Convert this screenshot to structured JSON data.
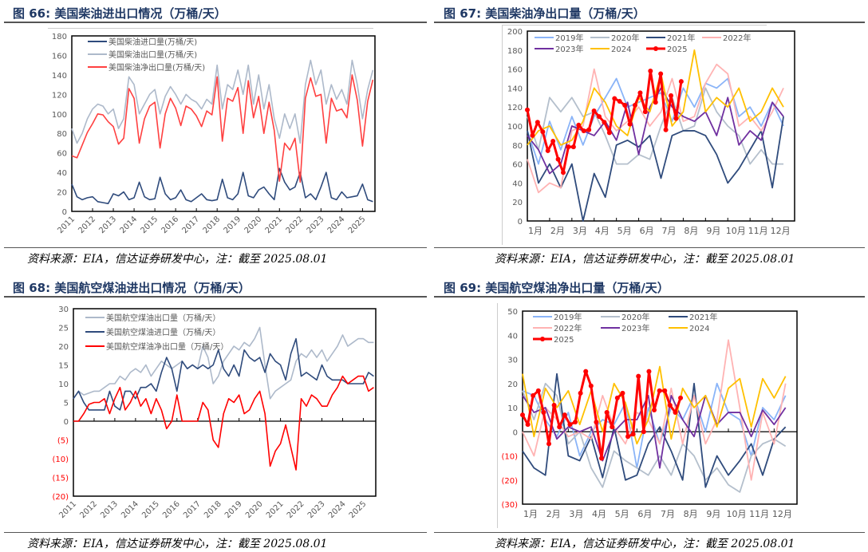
{
  "panels": [
    {
      "title": "图 66:  美国柴油进出口情况（万桶/天）",
      "source": "资料来源：EIA，信达证券研发中心，注：截至 2025.08.01"
    },
    {
      "title": "图 67:  美国柴油净出口量（万桶/天）",
      "source": "资料来源：EIA，信达证券研发中心，注：截至 2025.08.01"
    },
    {
      "title": "图 68:  美国航空煤油进出口情况（万桶/天）",
      "source": "资料来源：EIA，信达证券研发中心，注：截至 2025.08.01"
    },
    {
      "title": "图 69:  美国航空煤油净出口量（万桶/天）",
      "source": "资料来源：EIA，信达证券研发中心，注：截至 2025.08.01"
    }
  ],
  "chart_data": [
    {
      "type": "line",
      "title": "美国柴油进出口情况（万桶/天）",
      "xlabel": "",
      "ylabel": "",
      "xlim": [
        2011,
        2025.6
      ],
      "ylim": [
        0,
        180
      ],
      "yticks": [
        0,
        20,
        40,
        60,
        80,
        100,
        120,
        140,
        160,
        180
      ],
      "ytick_labels": [
        "0",
        "20",
        "40",
        "60",
        "80",
        "100",
        "120",
        "140",
        "160",
        "180"
      ],
      "xtick_labels": [
        "2011",
        "2012",
        "2013",
        "2014",
        "2015",
        "2016",
        "2017",
        "2018",
        "2019",
        "2020",
        "2021",
        "2022",
        "2023",
        "2024",
        "2025"
      ],
      "legend_position": "top-left",
      "x_start": 2011,
      "x_step": 0.25,
      "series": [
        {
          "name": "美国柴油进口量(万桶/天)",
          "color": "#2F4B7C",
          "values": [
            28,
            15,
            12,
            14,
            15,
            10,
            9,
            8,
            18,
            16,
            20,
            12,
            14,
            30,
            15,
            12,
            13,
            35,
            18,
            12,
            14,
            22,
            12,
            10,
            14,
            18,
            12,
            11,
            12,
            33,
            14,
            12,
            18,
            40,
            16,
            14,
            22,
            25,
            18,
            12,
            44,
            30,
            22,
            25,
            40,
            14,
            18,
            12,
            25,
            40,
            14,
            12,
            20,
            14,
            15,
            16,
            28,
            12,
            10
          ]
        },
        {
          "name": "美国柴油出口量(万桶/天)",
          "color": "#ADB9CA",
          "values": [
            85,
            70,
            80,
            95,
            105,
            110,
            108,
            100,
            105,
            85,
            95,
            138,
            130,
            100,
            110,
            120,
            125,
            100,
            118,
            128,
            120,
            110,
            120,
            115,
            112,
            105,
            115,
            110,
            150,
            105,
            130,
            125,
            145,
            120,
            150,
            110,
            140,
            105,
            130,
            95,
            75,
            100,
            85,
            100,
            70,
            130,
            155,
            130,
            145,
            110,
            130,
            115,
            125,
            110,
            155,
            130,
            95,
            125,
            145
          ]
        },
        {
          "name": "美国柴油净出口量(万桶/天)",
          "color": "#FF4040",
          "values": [
            57,
            55,
            68,
            81,
            90,
            100,
            99,
            92,
            87,
            69,
            75,
            126,
            116,
            70,
            95,
            108,
            112,
            65,
            100,
            116,
            106,
            88,
            108,
            105,
            98,
            87,
            103,
            99,
            138,
            72,
            116,
            113,
            127,
            80,
            134,
            96,
            118,
            80,
            112,
            83,
            31,
            70,
            63,
            75,
            30,
            116,
            137,
            118,
            120,
            70,
            116,
            103,
            105,
            96,
            140,
            114,
            67,
            113,
            135
          ]
        }
      ]
    },
    {
      "type": "line",
      "title": "美国柴油净出口量（万桶/天）",
      "xlabel": "",
      "ylabel": "",
      "xlim": [
        1,
        13
      ],
      "ylim": [
        0,
        200
      ],
      "yticks": [
        0,
        20,
        40,
        60,
        80,
        100,
        120,
        140,
        160,
        180,
        200
      ],
      "ytick_labels": [
        "0",
        "20",
        "40",
        "60",
        "80",
        "100",
        "120",
        "140",
        "160",
        "180",
        "200"
      ],
      "xtick_labels": [
        "1月",
        "2月",
        "3月",
        "4月",
        "5月",
        "6月",
        "7月",
        "8月",
        "9月",
        "10月",
        "11月",
        "12月"
      ],
      "legend_position": "top",
      "series": [
        {
          "name": "2019年",
          "color": "#8AB4F8",
          "x_start": 1,
          "x_step": 0.5,
          "values": [
            95,
            60,
            105,
            75,
            110,
            80,
            110,
            130,
            150,
            120,
            125,
            130,
            135,
            105,
            140,
            120,
            145,
            140,
            150,
            110,
            120,
            100,
            125,
            100
          ]
        },
        {
          "name": "2020年",
          "color": "#B4BFCC",
          "x_start": 1,
          "x_step": 0.5,
          "values": [
            110,
            75,
            130,
            115,
            130,
            110,
            115,
            90,
            60,
            60,
            70,
            65,
            100,
            130,
            95,
            100,
            140,
            115,
            100,
            90,
            60,
            75,
            60,
            60
          ]
        },
        {
          "name": "2021年",
          "color": "#2F4B7C",
          "x_start": 1,
          "x_step": 0.5,
          "values": [
            95,
            40,
            60,
            35,
            60,
            0,
            50,
            25,
            80,
            85,
            78,
            90,
            45,
            90,
            95,
            95,
            90,
            70,
            40,
            55,
            75,
            95,
            35,
            110
          ]
        },
        {
          "name": "2022年",
          "color": "#FFB3B3",
          "x_start": 1,
          "x_step": 0.5,
          "values": [
            65,
            30,
            40,
            35,
            95,
            100,
            160,
            110,
            95,
            105,
            120,
            100,
            115,
            150,
            105,
            110,
            145,
            165,
            155,
            100,
            110,
            95,
            115,
            140
          ]
        },
        {
          "name": "2023年",
          "color": "#7030A0",
          "x_start": 1,
          "x_step": 0.5,
          "values": [
            90,
            75,
            50,
            60,
            100,
            95,
            90,
            105,
            85,
            125,
            70,
            120,
            140,
            120,
            110,
            105,
            115,
            90,
            130,
            80,
            95,
            85,
            125,
            110
          ]
        },
        {
          "name": "2024",
          "color": "#FFC000",
          "x_start": 1,
          "x_step": 0.5,
          "values": [
            80,
            95,
            100,
            80,
            85,
            105,
            140,
            125,
            100,
            90,
            130,
            115,
            155,
            100,
            115,
            180,
            115,
            130,
            120,
            140,
            105,
            115,
            140,
            120
          ]
        },
        {
          "name": "2025",
          "color": "#FF0000",
          "markers": true,
          "x_start": 1,
          "x_step": 0.2303,
          "values": [
            117,
            90,
            104,
            94,
            74,
            84,
            65,
            51,
            78,
            78,
            101,
            95,
            96,
            116,
            110,
            104,
            93,
            129,
            126,
            122,
            102,
            122,
            135,
            115,
            158,
            125,
            155,
            96,
            132,
            108,
            147
          ]
        }
      ]
    },
    {
      "type": "line",
      "title": "美国航空煤油进出口情况（万桶/天）",
      "xlabel": "",
      "ylabel": "",
      "xlim": [
        2011,
        2025.6
      ],
      "ylim": [
        -20,
        30
      ],
      "yticks": [
        -20,
        -15,
        -10,
        -5,
        0,
        5,
        10,
        15,
        20,
        25,
        30
      ],
      "ytick_labels": [
        "(20)",
        "(15)",
        "(10)",
        "(5)",
        "0",
        "5",
        "10",
        "15",
        "20",
        "25",
        "30"
      ],
      "xtick_labels": [
        "2011",
        "2012",
        "2013",
        "2014",
        "2015",
        "2016",
        "2017",
        "2018",
        "2019",
        "2020",
        "2021",
        "2022",
        "2023",
        "2024",
        "2025"
      ],
      "legend_position": "top-left",
      "x_start": 2011,
      "x_step": 0.25,
      "series": [
        {
          "name": "美国航空煤油出口量（万桶/天）",
          "color": "#ADB9CA",
          "values": [
            6,
            8,
            7,
            7.5,
            8,
            8,
            9,
            10,
            10,
            12,
            11,
            13,
            14,
            13,
            15,
            12,
            14,
            16,
            15,
            14,
            15,
            16,
            14,
            15,
            14,
            20,
            17,
            10,
            12,
            16,
            18,
            20,
            19,
            21,
            20,
            22,
            25,
            15,
            6,
            8,
            9,
            10,
            11,
            16,
            18,
            17,
            19,
            17,
            19,
            16,
            18,
            20,
            23,
            20,
            21,
            22,
            22,
            21,
            21
          ]
        },
        {
          "name": "美国航空煤油进口量（万桶/天）",
          "color": "#2F4B7C",
          "values": [
            6,
            8,
            5,
            3,
            3,
            3,
            3,
            8,
            4,
            3,
            8,
            8,
            6,
            9,
            9,
            10,
            8,
            13,
            17,
            14,
            8,
            16,
            14,
            15,
            14,
            15,
            14,
            15,
            19,
            14,
            12,
            15,
            12,
            19,
            17,
            16,
            17,
            13,
            18,
            16,
            15,
            11,
            18,
            22,
            12,
            13,
            12,
            11,
            15,
            12,
            11,
            11,
            11,
            10,
            10,
            10,
            10,
            13,
            12
          ]
        },
        {
          "name": "美国航空煤油净出口量（万桶/天）",
          "color": "#FF0000",
          "values": [
            0,
            0,
            2,
            4.5,
            5,
            5,
            6,
            2,
            6,
            9,
            3,
            5,
            8,
            4,
            6,
            2,
            6,
            3,
            -2,
            0,
            7,
            0,
            0,
            0,
            0,
            5,
            3,
            -5,
            -7,
            2,
            6,
            5,
            7,
            2,
            3,
            6,
            8,
            2,
            -12,
            -8,
            -6,
            -1,
            -7,
            -13,
            6,
            4,
            7,
            6,
            4,
            4,
            7,
            9,
            12,
            10,
            11,
            12,
            12,
            8,
            9
          ]
        }
      ]
    },
    {
      "type": "line",
      "title": "美国航空煤油净出口量（万桶/天）",
      "xlabel": "",
      "ylabel": "",
      "xlim": [
        1,
        13
      ],
      "ylim": [
        -30,
        50
      ],
      "yticks": [
        -30,
        -20,
        -10,
        0,
        10,
        20,
        30,
        40,
        50
      ],
      "ytick_labels": [
        "(30)",
        "(20)",
        "(10)",
        "0",
        "10",
        "20",
        "30",
        "40",
        "50"
      ],
      "xtick_labels": [
        "1月",
        "2月",
        "3月",
        "4月",
        "5月",
        "6月",
        "7月",
        "8月",
        "9月",
        "10月",
        "11月",
        "12月"
      ],
      "legend_position": "top",
      "series": [
        {
          "name": "2019年",
          "color": "#8AB4F8",
          "x_start": 1,
          "x_step": 0.5,
          "values": [
            17,
            15,
            5,
            -2,
            8,
            -10,
            0,
            5,
            3,
            12,
            -15,
            10,
            -5,
            10,
            5,
            15,
            0,
            20,
            8,
            5,
            -10,
            10,
            5,
            15
          ]
        },
        {
          "name": "2020年",
          "color": "#B4BFCC",
          "x_start": 1,
          "x_step": 0.5,
          "values": [
            17,
            5,
            20,
            15,
            -5,
            0,
            -15,
            -23,
            -8,
            -12,
            -15,
            -18,
            -10,
            -18,
            -5,
            -10,
            -20,
            -15,
            -22,
            -25,
            -10,
            -5,
            -3,
            -6
          ]
        },
        {
          "name": "2021年",
          "color": "#2F4B7C",
          "x_start": 1,
          "x_step": 0.5,
          "values": [
            -8,
            -15,
            -18,
            24,
            -10,
            -12,
            -2,
            -19,
            2,
            -20,
            -18,
            -5,
            2,
            -8,
            -20,
            20,
            -23,
            -10,
            -18,
            -12,
            -5,
            -18,
            -3,
            2
          ]
        },
        {
          "name": "2022年",
          "color": "#FFB3B3",
          "x_start": 1,
          "x_step": 0.5,
          "values": [
            0,
            -10,
            10,
            5,
            -2,
            0,
            -3,
            15,
            2,
            -5,
            8,
            5,
            -5,
            18,
            -5,
            15,
            -5,
            5,
            38,
            10,
            -20,
            8,
            -5,
            20
          ]
        },
        {
          "name": "2023年",
          "color": "#7030A0",
          "x_start": 1,
          "x_step": 0.5,
          "values": [
            15,
            8,
            10,
            -3,
            2,
            0,
            2,
            -12,
            0,
            5,
            5,
            15,
            -15,
            15,
            5,
            -2,
            15,
            3,
            8,
            8,
            -2,
            9,
            3,
            10
          ]
        },
        {
          "name": "2024",
          "color": "#FFC000",
          "x_start": 1,
          "x_step": 0.5,
          "values": [
            24,
            -2,
            18,
            10,
            17,
            3,
            17,
            0,
            20,
            12,
            -5,
            5,
            27,
            -3,
            18,
            10,
            15,
            2,
            18,
            22,
            2,
            22,
            14,
            23
          ]
        },
        {
          "name": "2025",
          "color": "#FF0000",
          "markers": true,
          "x_start": 1,
          "x_step": 0.2303,
          "values": [
            7,
            3,
            15,
            17,
            8,
            -5,
            11,
            2,
            7,
            3,
            4,
            16,
            25,
            19,
            4,
            -11,
            8,
            2,
            14,
            16,
            -2,
            -1,
            23,
            0,
            25,
            9,
            17,
            17,
            11,
            8,
            14
          ]
        }
      ]
    }
  ]
}
